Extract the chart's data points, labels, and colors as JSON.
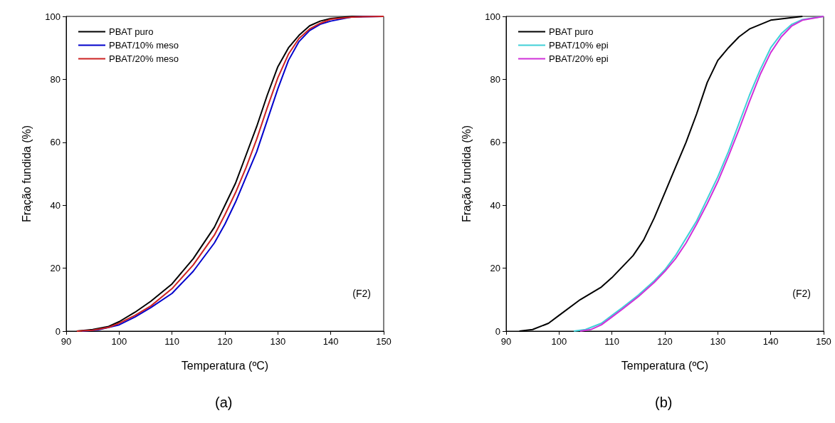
{
  "chart_data": [
    {
      "type": "line",
      "xlabel": "Temperatura (ºC)",
      "ylabel": "Fração fundida (%)",
      "xlim": [
        90,
        150
      ],
      "xticks": [
        90,
        100,
        110,
        120,
        130,
        140,
        150
      ],
      "ylim": [
        0,
        100
      ],
      "yticks": [
        0,
        20,
        40,
        60,
        80,
        100
      ],
      "grid": false,
      "legend": "top left",
      "marker": "none",
      "line_style": "solid",
      "annotations": [
        "(F2)",
        "(a)"
      ],
      "series": [
        {
          "name": "PBAT puro",
          "color": "#000000",
          "x": [
            92,
            95,
            98,
            100,
            103,
            106,
            110,
            114,
            118,
            120,
            122,
            124,
            126,
            128,
            130,
            132,
            134,
            136,
            138,
            140,
            144,
            150
          ],
          "values": [
            0,
            0.5,
            1.5,
            3,
            6,
            9.5,
            15,
            23,
            33,
            40,
            47,
            56,
            65,
            75,
            84,
            90,
            94,
            97,
            98.5,
            99.3,
            100,
            100
          ]
        },
        {
          "name": "PBAT/10% meso",
          "color": "#0000cc",
          "x": [
            93,
            96,
            100,
            103,
            106,
            110,
            114,
            118,
            120,
            122,
            124,
            126,
            128,
            130,
            132,
            134,
            136,
            138,
            140,
            144,
            150
          ],
          "values": [
            0,
            0.4,
            2,
            4.5,
            7.5,
            12,
            19,
            28,
            34,
            41,
            49,
            57,
            67,
            77,
            86,
            92,
            95.5,
            97.5,
            98.5,
            99.8,
            100
          ]
        },
        {
          "name": "PBAT/20% meso",
          "color": "#cc2222",
          "x": [
            92,
            95,
            98,
            100,
            103,
            106,
            110,
            114,
            118,
            120,
            122,
            124,
            126,
            128,
            130,
            132,
            134,
            136,
            138,
            140,
            144,
            150
          ],
          "values": [
            0,
            0.3,
            1.2,
            2.5,
            5,
            8,
            13.5,
            21,
            30.5,
            37,
            44,
            52,
            61,
            71,
            80.5,
            88,
            93,
            96,
            97.8,
            99.1,
            99.8,
            100
          ]
        }
      ]
    },
    {
      "type": "line",
      "xlabel": "Temperatura (ºC)",
      "ylabel": "Fração fundida (%)",
      "xlim": [
        90,
        150
      ],
      "xticks": [
        90,
        100,
        110,
        120,
        130,
        140,
        150
      ],
      "ylim": [
        0,
        100
      ],
      "yticks": [
        0,
        20,
        40,
        60,
        80,
        100
      ],
      "grid": false,
      "legend": "top left",
      "marker": "none",
      "line_style": "solid",
      "annotations": [
        "(F2)",
        "(b)"
      ],
      "series": [
        {
          "name": "PBAT puro",
          "color": "#000000",
          "x": [
            92.5,
            95,
            98,
            100,
            104,
            108,
            110,
            114,
            116,
            118,
            120,
            122,
            124,
            126,
            128,
            130,
            132,
            134,
            136,
            140,
            146
          ],
          "values": [
            0,
            0.5,
            2.5,
            5,
            10,
            14,
            17,
            24,
            29,
            36,
            44,
            52,
            60,
            69,
            79,
            86,
            90,
            93.5,
            96,
            98.8,
            100
          ]
        },
        {
          "name": "PBAT/10% epi",
          "color": "#40d0d8",
          "x": [
            102.8,
            105,
            108,
            110,
            112,
            115,
            118,
            120,
            122,
            124,
            126,
            128,
            130,
            132,
            134,
            136,
            138,
            140,
            142,
            144,
            146,
            150
          ],
          "values": [
            0,
            0.5,
            2.5,
            5,
            7.5,
            11.5,
            16,
            19.5,
            24,
            29.5,
            35,
            42,
            49,
            57,
            66,
            75,
            83,
            90,
            94.5,
            97.5,
            99,
            100
          ]
        },
        {
          "name": "PBAT/20% epi",
          "color": "#d030d8",
          "x": [
            104,
            106,
            108,
            110,
            112,
            115,
            118,
            120,
            122,
            124,
            126,
            128,
            130,
            132,
            134,
            136,
            138,
            140,
            142,
            144,
            146,
            150
          ],
          "values": [
            0,
            0.5,
            2,
            4.5,
            7,
            11,
            15.5,
            19,
            23,
            28,
            34,
            40.5,
            47.5,
            55.5,
            64,
            73,
            81.5,
            88.5,
            93.5,
            97,
            98.8,
            100
          ]
        }
      ]
    }
  ]
}
